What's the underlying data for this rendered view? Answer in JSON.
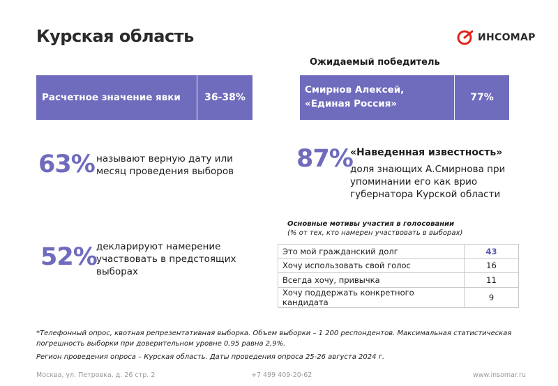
{
  "header": {
    "title": "Курская область",
    "logo_text": "ИНСОМАР"
  },
  "turnout": {
    "label": "Расчетное значение явки",
    "value": "36-38%"
  },
  "winner": {
    "heading": "Ожидаемый победитель",
    "line1": "Смирнов Алексей,",
    "line2": "«Единая Россия»",
    "value": "77%"
  },
  "stats": [
    {
      "value": "63%",
      "line1": "называют верную дату или",
      "line2": "месяц проведения выборов"
    },
    {
      "value": "52%",
      "line1": "декларируют намерение",
      "line2": "участвовать в предстоящих",
      "line3": "выборах"
    }
  ],
  "recognition": {
    "value": "87%",
    "title": "«Наведенная известность»",
    "line1": "доля знающих А.Смирнова при",
    "line2": "упоминании его как врио",
    "line3": "губернатора Курской области"
  },
  "motives": {
    "title": "Основные мотивы участия в голосовании",
    "note": "(% от тех, кто намерен участвовать в выборах)",
    "rows": [
      {
        "label": "Это мой гражданский долг",
        "value": "43"
      },
      {
        "label": "Хочу использовать свой голос",
        "value": "16"
      },
      {
        "label": "Всегда хочу, привычка",
        "value": "11"
      },
      {
        "label": "Хочу поддержать конкретного кандидата",
        "value": "9"
      }
    ]
  },
  "footnotes": {
    "line1": "*Телефонный опрос, квотная репрезентативная выборка. Объем выборки – 1 200 респондентов. Максимальная статистическая",
    "line2": "погрешность выборки при доверительном уровне 0,95 равна 2,9%.",
    "line3": "Регион проведения опроса – Курская область. Даты проведения опроса 25-26 августа 2024 г."
  },
  "footer": {
    "address": "Москва, ул. Петровка, д. 26 стр. 2",
    "phone": "+7 499 409-20-62",
    "site": "www.insomar.ru"
  },
  "colors": {
    "accent": "#6f6bbd",
    "logo_red": "#e2231a",
    "text": "#1c1c1c",
    "muted": "#9a9a9a"
  }
}
